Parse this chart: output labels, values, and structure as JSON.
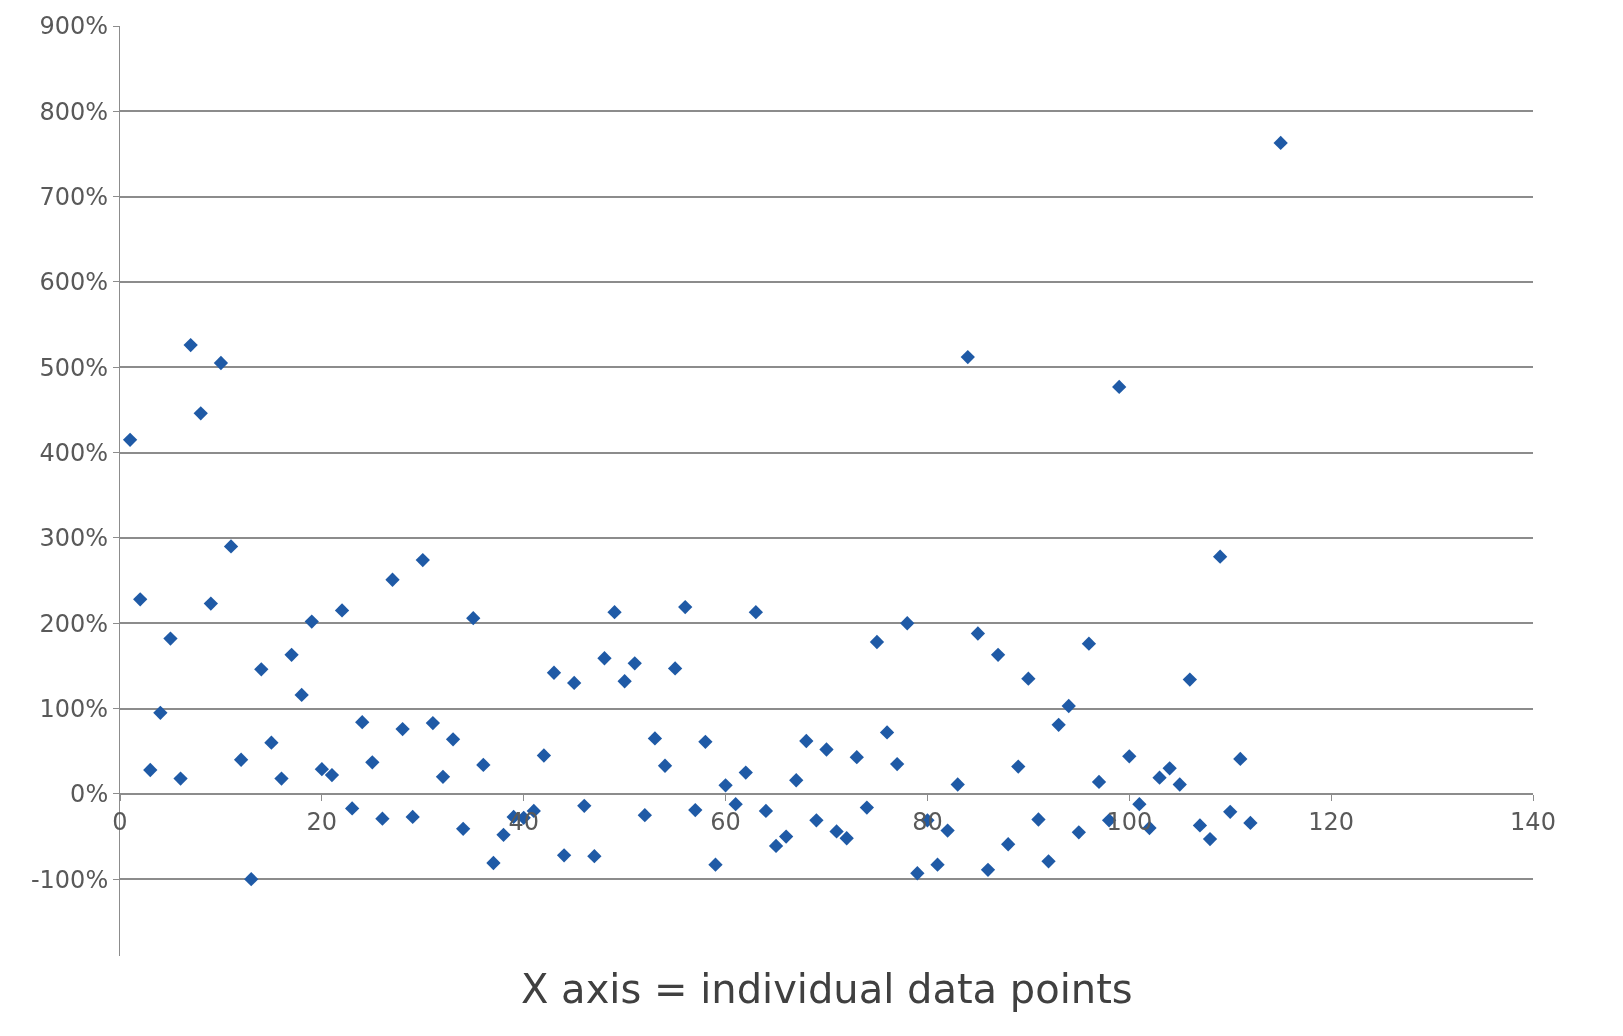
{
  "chart_data": {
    "type": "scatter",
    "xlabel": "X axis = individual data points",
    "x": [
      1,
      2,
      3,
      4,
      5,
      6,
      7,
      8,
      9,
      10,
      11,
      12,
      13,
      14,
      15,
      16,
      17,
      18,
      19,
      20,
      21,
      22,
      23,
      24,
      25,
      26,
      27,
      28,
      29,
      30,
      31,
      32,
      33,
      34,
      35,
      36,
      37,
      38,
      39,
      40,
      41,
      42,
      43,
      44,
      45,
      46,
      47,
      48,
      49,
      50,
      51,
      52,
      53,
      54,
      55,
      56,
      57,
      58,
      59,
      60,
      61,
      62,
      63,
      64,
      65,
      66,
      67,
      68,
      69,
      70,
      71,
      72,
      73,
      74,
      75,
      76,
      77,
      78,
      79,
      80,
      81,
      82,
      83,
      84,
      85,
      86,
      87,
      88,
      89,
      90,
      91,
      92,
      93,
      94,
      95,
      96,
      97,
      98,
      99,
      100,
      101,
      102,
      103,
      104,
      105,
      106,
      107,
      108,
      109,
      110,
      111,
      112,
      115
    ],
    "series": [
      {
        "color": "#1f5aa6",
        "values": [
          415,
          228,
          28,
          95,
          182,
          18,
          526,
          446,
          223,
          505,
          290,
          40,
          -100,
          146,
          60,
          18,
          163,
          116,
          202,
          29,
          22,
          215,
          -17,
          84,
          37,
          -29,
          251,
          76,
          -27,
          274,
          83,
          20,
          64,
          -41,
          206,
          34,
          -81,
          -48,
          -27,
          -28,
          -20,
          45,
          142,
          -72,
          130,
          -14,
          -73,
          159,
          213,
          132,
          153,
          -25,
          65,
          33,
          147,
          219,
          -19,
          61,
          -83,
          10,
          -12,
          25,
          213,
          -20,
          -61,
          -50,
          16,
          62,
          -31,
          52,
          -44,
          -52,
          43,
          -16,
          178,
          72,
          35,
          200,
          -93,
          -31,
          -83,
          -43,
          11,
          512,
          188,
          -89,
          163,
          -59,
          32,
          135,
          -30,
          -79,
          81,
          103,
          -45,
          176,
          14,
          -31,
          477,
          44,
          -12,
          -40,
          19,
          30,
          11,
          134,
          -37,
          -53,
          278,
          -21,
          41,
          -34,
          763
        ]
      }
    ],
    "xlim": [
      0,
      140
    ],
    "xticks": [
      0,
      20,
      40,
      60,
      80,
      100,
      120,
      140
    ],
    "ylim": [
      -190,
      900
    ],
    "yticks": [
      {
        "value": -100,
        "label": "-100%"
      },
      {
        "value": 0,
        "label": "0%"
      },
      {
        "value": 100,
        "label": "100%"
      },
      {
        "value": 200,
        "label": "200%"
      },
      {
        "value": 300,
        "label": "300%"
      },
      {
        "value": 400,
        "label": "400%"
      },
      {
        "value": 500,
        "label": "500%"
      },
      {
        "value": 600,
        "label": "600%"
      },
      {
        "value": 700,
        "label": "700%"
      },
      {
        "value": 800,
        "label": "800%"
      },
      {
        "value": 900,
        "label": "900%"
      }
    ],
    "grid": "y",
    "marker": "diamond"
  }
}
